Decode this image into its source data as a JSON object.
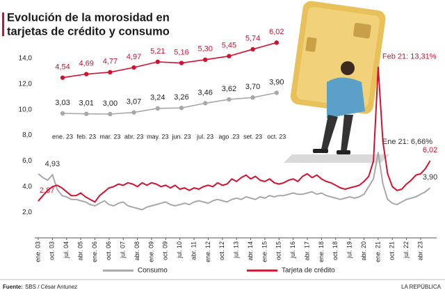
{
  "header": {
    "title": [
      "Evolución de la morosidad en",
      "tarjetas de crédito y consumo"
    ]
  },
  "chart_data": [
    {
      "type": "line",
      "categories": [
        "ene. 03",
        null,
        null,
        "oct. 03",
        null,
        null,
        "jul. 04",
        null,
        null,
        "abr. 05",
        null,
        null,
        "ene. 06",
        null,
        null,
        "oct. 06",
        null,
        null,
        "jul. 07",
        null,
        null,
        "abr. 08",
        null,
        null,
        "ene. 09",
        null,
        null,
        "oct. 09",
        null,
        null,
        "jul. 10",
        null,
        null,
        "abr. 11",
        null,
        null,
        "ene. 12",
        null,
        null,
        "oct. 12",
        null,
        null,
        "jul. 13",
        null,
        null,
        "abr. 14",
        null,
        null,
        "ene. 15",
        null,
        null,
        "oct. 15",
        null,
        null,
        "jul. 16",
        null,
        null,
        "abr. 17",
        null,
        null,
        "ene. 18",
        null,
        null,
        "oct. 18",
        null,
        null,
        "jul. 19",
        null,
        null,
        "abr. 20",
        null,
        null,
        "ene. 21",
        null,
        null,
        "oct. 21",
        null,
        null,
        "jul. 22",
        null,
        null,
        "abr. 23",
        null,
        null
      ],
      "ylim": [
        0,
        14
      ],
      "yticks": [
        {
          "value": 2,
          "label": "2,0"
        },
        {
          "value": 4,
          "label": "4,0"
        },
        {
          "value": 6,
          "label": "6,0"
        },
        {
          "value": 8,
          "label": "8,0"
        },
        {
          "value": 10,
          "label": "10,0"
        },
        {
          "value": 12,
          "label": "12,0"
        },
        {
          "value": 14,
          "label": "14,0"
        }
      ],
      "legend": "bottom",
      "series": [
        {
          "name": "Consumo",
          "color": "#a8a8a8",
          "values": [
            5.0,
            4.7,
            4.5,
            4.93,
            3.8,
            3.3,
            3.2,
            3.0,
            3.0,
            2.9,
            2.8,
            2.6,
            2.5,
            2.7,
            2.9,
            2.6,
            2.5,
            2.7,
            2.8,
            2.5,
            2.4,
            2.3,
            2.2,
            2.4,
            2.5,
            2.6,
            2.7,
            2.8,
            2.6,
            2.5,
            2.6,
            2.7,
            2.6,
            2.8,
            2.9,
            2.8,
            2.7,
            2.9,
            3.0,
            2.9,
            2.8,
            3.0,
            3.1,
            3.0,
            3.2,
            3.1,
            3.0,
            3.2,
            3.1,
            3.3,
            3.2,
            3.3,
            3.3,
            3.4,
            3.5,
            3.4,
            3.4,
            3.5,
            3.6,
            3.4,
            3.5,
            3.3,
            3.2,
            3.1,
            3.0,
            3.1,
            3.2,
            3.1,
            3.2,
            3.4,
            4.0,
            4.6,
            6.66,
            4.2,
            3.0,
            2.7,
            2.6,
            2.8,
            3.0,
            3.1,
            3.2,
            3.4,
            3.6,
            3.9
          ],
          "value_labels": [
            null,
            null,
            null,
            "4,93",
            null,
            null,
            null,
            null,
            null,
            null,
            null,
            null,
            null,
            null,
            null,
            null,
            null,
            null,
            null,
            null,
            null,
            null,
            null,
            null,
            null,
            null,
            null,
            null,
            null,
            null,
            null,
            null,
            null,
            null,
            null,
            null,
            null,
            null,
            null,
            null,
            null,
            null,
            null,
            null,
            null,
            null,
            null,
            null,
            null,
            null,
            null,
            null,
            null,
            null,
            null,
            null,
            null,
            null,
            null,
            null,
            null,
            null,
            null,
            null,
            null,
            null,
            null,
            null,
            null,
            null,
            null,
            null,
            "Ene 21: 6,66%",
            null,
            null,
            null,
            null,
            null,
            null,
            null,
            null,
            null,
            null,
            "3,90"
          ]
        },
        {
          "name": "Tarjeta de crédito",
          "color": "#d3112e",
          "values": [
            2.87,
            3.3,
            3.7,
            4.0,
            4.1,
            3.9,
            3.6,
            3.3,
            3.3,
            3.5,
            3.2,
            3.0,
            2.8,
            3.3,
            3.6,
            3.9,
            4.0,
            4.2,
            4.1,
            4.3,
            4.2,
            4.0,
            4.3,
            4.1,
            4.3,
            4.2,
            4.0,
            4.1,
            3.9,
            4.1,
            3.8,
            3.9,
            3.7,
            3.9,
            3.8,
            4.0,
            4.1,
            4.0,
            4.3,
            4.1,
            4.2,
            4.6,
            4.4,
            4.7,
            4.9,
            4.6,
            4.8,
            4.5,
            4.4,
            4.6,
            4.3,
            4.2,
            4.3,
            4.5,
            4.6,
            4.4,
            4.8,
            5.0,
            4.7,
            4.9,
            4.6,
            4.4,
            4.3,
            4.1,
            3.9,
            3.8,
            3.9,
            4.0,
            4.1,
            4.4,
            4.8,
            6.0,
            13.31,
            7.5,
            5.0,
            4.0,
            3.7,
            3.8,
            4.2,
            4.5,
            4.9,
            5.0,
            5.4,
            6.02
          ],
          "value_labels": [
            "2,87",
            null,
            null,
            null,
            null,
            null,
            null,
            null,
            null,
            null,
            null,
            null,
            null,
            null,
            null,
            null,
            null,
            null,
            null,
            null,
            null,
            null,
            null,
            null,
            null,
            null,
            null,
            null,
            null,
            null,
            null,
            null,
            null,
            null,
            null,
            null,
            null,
            null,
            null,
            null,
            null,
            null,
            null,
            null,
            null,
            null,
            null,
            null,
            null,
            null,
            null,
            null,
            null,
            null,
            null,
            null,
            null,
            null,
            null,
            null,
            null,
            null,
            null,
            null,
            null,
            null,
            null,
            null,
            null,
            null,
            null,
            null,
            "Feb 21: 13,31%",
            null,
            null,
            null,
            null,
            null,
            null,
            null,
            null,
            null,
            null,
            "6,02"
          ]
        }
      ]
    },
    {
      "type": "line",
      "categories": [
        "ene. 23",
        "feb. 23",
        "mar. 23",
        "abr. 23",
        "may. 23",
        "jun. 23",
        "jul. 23",
        "ago .23",
        "set. 23",
        "oct. 23"
      ],
      "ylim": [
        2.5,
        6.5
      ],
      "series": [
        {
          "name": null,
          "color": "#d3112e",
          "values": [
            4.54,
            4.69,
            4.77,
            4.97,
            5.21,
            5.16,
            5.3,
            5.45,
            5.74,
            6.02
          ],
          "value_labels": [
            "4,54",
            "4,69",
            "4,77",
            "4,97",
            "5,21",
            "5,16",
            "5,30",
            "5,45",
            "5,74",
            "6,02"
          ]
        },
        {
          "name": null,
          "color": "#a8a8a8",
          "values": [
            3.03,
            3.01,
            3.0,
            3.07,
            3.24,
            3.26,
            3.46,
            3.62,
            3.7,
            3.9
          ],
          "value_labels": [
            "3,03",
            "3,01",
            "3,00",
            "3,07",
            "3,24",
            "3,26",
            "3,46",
            "3,62",
            "3,70",
            "3,90"
          ]
        }
      ]
    }
  ],
  "footer": {
    "source_label": "Fuente:",
    "source": "SBS / César Antunez",
    "brand": "LA REPÚBLICA"
  }
}
